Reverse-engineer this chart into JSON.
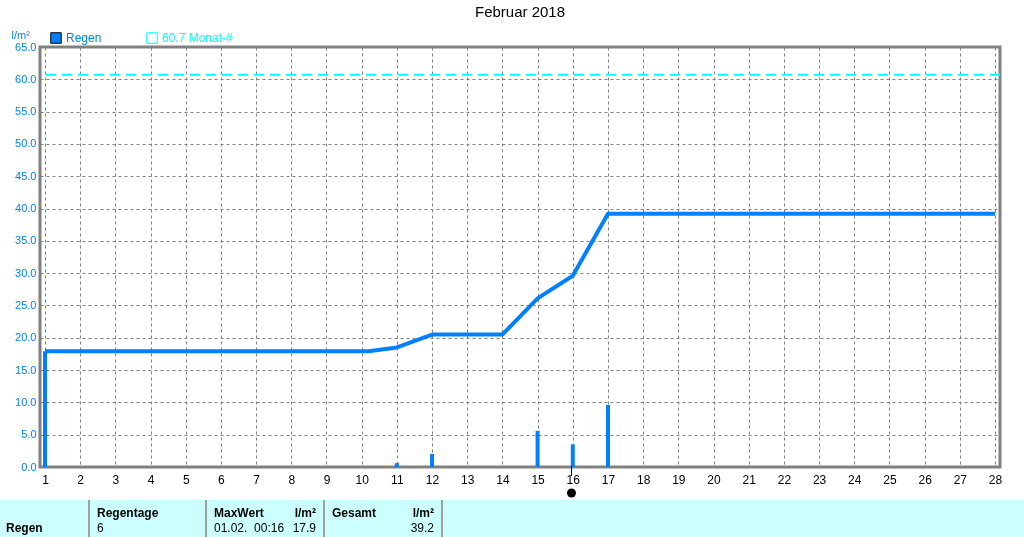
{
  "chart_data": {
    "type": "bar",
    "title": "Februar 2018",
    "ylabel": "l/m²",
    "xlim": [
      1,
      28
    ],
    "xticks": [
      1,
      2,
      3,
      4,
      5,
      6,
      7,
      8,
      9,
      10,
      11,
      12,
      13,
      14,
      15,
      16,
      17,
      18,
      19,
      20,
      21,
      22,
      23,
      24,
      25,
      26,
      27,
      28
    ],
    "ylim": [
      0,
      65
    ],
    "yticks": [
      {
        "value": 0,
        "label": "0.0"
      },
      {
        "value": 5,
        "label": "5.0"
      },
      {
        "value": 10,
        "label": "10.0"
      },
      {
        "value": 15,
        "label": "15.0"
      },
      {
        "value": 20,
        "label": "20.0"
      },
      {
        "value": 25,
        "label": "25.0"
      },
      {
        "value": 30,
        "label": "30.0"
      },
      {
        "value": 35,
        "label": "35.0"
      },
      {
        "value": 40,
        "label": "40.0"
      },
      {
        "value": 45,
        "label": "45.0"
      },
      {
        "value": 50,
        "label": "50.0"
      },
      {
        "value": 55,
        "label": "55.0"
      },
      {
        "value": 60,
        "label": "60.0"
      },
      {
        "value": 65,
        "label": "65.0"
      }
    ],
    "grid": true,
    "legend": "top left",
    "series": [
      {
        "name": "Regen",
        "color": "#0080ff",
        "x": [
          1,
          11,
          12,
          15,
          16,
          17
        ],
        "values": [
          17.9,
          0.6,
          2.0,
          5.6,
          3.5,
          9.6
        ]
      },
      {
        "type": "line",
        "color": "#0080ff",
        "x": [
          1,
          10.2,
          11,
          12,
          14,
          15,
          16,
          17,
          28
        ],
        "values": [
          17.9,
          17.9,
          18.5,
          20.5,
          20.5,
          26.1,
          29.6,
          39.2,
          39.2
        ]
      }
    ],
    "ref_lines": [
      {
        "axis": "y",
        "value": 60.7,
        "label": "60.7 Monat-#",
        "color": "#00ffff",
        "line_style": "dashed"
      }
    ],
    "annotations": [
      "Regentage",
      "6",
      "MaxWert",
      "l/m²",
      "01.02.  00:16",
      "17.9",
      "Gesamt",
      "l/m²",
      "39.2"
    ]
  }
}
